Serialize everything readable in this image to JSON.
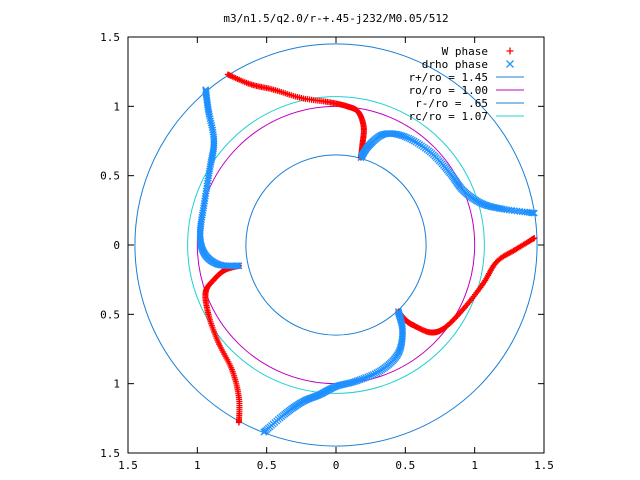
{
  "chart_data": {
    "type": "scatter",
    "title": "m3/n1.5/q2.0/r-+.45-j232/M0.05/512",
    "xlabel": "",
    "ylabel": "",
    "xlim": [
      -1.5,
      1.5
    ],
    "ylim": [
      -1.5,
      1.5
    ],
    "x_tick_values": [
      -1.5,
      -1,
      -0.5,
      0,
      0.5,
      1,
      1.5
    ],
    "x_tick_labels": [
      "1.5",
      "1",
      "0.5",
      "0",
      "0.5",
      "1",
      "1.5"
    ],
    "y_tick_values": [
      1.5,
      1,
      0.5,
      0,
      -0.5,
      -1,
      -1.5
    ],
    "y_tick_labels": [
      "1.5",
      "1",
      "0.5",
      "0",
      "0.5",
      "1",
      "1.5"
    ],
    "grid": false,
    "legend_position": "top-right",
    "series": [
      {
        "name": "W phase",
        "kind": "points",
        "marker": "plus",
        "color": "#ff0000",
        "arms": [
          [
            [
              -0.78,
              1.23
            ],
            [
              -0.62,
              1.16
            ],
            [
              -0.45,
              1.12
            ],
            [
              -0.25,
              1.06
            ],
            [
              -0.05,
              1.03
            ],
            [
              0.08,
              1.0
            ],
            [
              0.16,
              0.96
            ],
            [
              0.2,
              0.85
            ],
            [
              0.19,
              0.72
            ],
            [
              0.18,
              0.63
            ]
          ],
          [
            [
              1.43,
              0.05
            ],
            [
              1.3,
              -0.03
            ],
            [
              1.16,
              -0.12
            ],
            [
              1.06,
              -0.28
            ],
            [
              0.92,
              -0.46
            ],
            [
              0.78,
              -0.6
            ],
            [
              0.68,
              -0.63
            ],
            [
              0.56,
              -0.58
            ],
            [
              0.5,
              -0.54
            ],
            [
              0.45,
              -0.48
            ]
          ],
          [
            [
              -0.7,
              -1.28
            ],
            [
              -0.7,
              -1.1
            ],
            [
              -0.75,
              -0.9
            ],
            [
              -0.85,
              -0.7
            ],
            [
              -0.92,
              -0.5
            ],
            [
              -0.94,
              -0.34
            ],
            [
              -0.88,
              -0.25
            ],
            [
              -0.8,
              -0.18
            ],
            [
              -0.7,
              -0.15
            ]
          ]
        ]
      },
      {
        "name": "drho phase",
        "kind": "points",
        "marker": "cross",
        "color": "#1e90ff",
        "arms": [
          [
            [
              0.18,
              0.63
            ],
            [
              0.24,
              0.72
            ],
            [
              0.35,
              0.8
            ],
            [
              0.5,
              0.78
            ],
            [
              0.68,
              0.67
            ],
            [
              0.82,
              0.52
            ],
            [
              0.92,
              0.39
            ],
            [
              1.05,
              0.3
            ],
            [
              1.2,
              0.26
            ],
            [
              1.43,
              0.23
            ]
          ],
          [
            [
              0.45,
              -0.48
            ],
            [
              0.48,
              -0.62
            ],
            [
              0.45,
              -0.78
            ],
            [
              0.33,
              -0.9
            ],
            [
              0.15,
              -0.98
            ],
            [
              0.0,
              -1.02
            ],
            [
              -0.12,
              -1.08
            ],
            [
              -0.24,
              -1.13
            ],
            [
              -0.37,
              -1.22
            ],
            [
              -0.52,
              -1.35
            ]
          ],
          [
            [
              -0.7,
              -0.15
            ],
            [
              -0.85,
              -0.14
            ],
            [
              -0.95,
              -0.06
            ],
            [
              -0.98,
              0.08
            ],
            [
              -0.95,
              0.3
            ],
            [
              -0.91,
              0.55
            ],
            [
              -0.88,
              0.75
            ],
            [
              -0.92,
              0.97
            ],
            [
              -0.94,
              1.12
            ]
          ]
        ]
      },
      {
        "name": "r+/ro = 1.45",
        "kind": "circle",
        "radius": 1.45,
        "color": "#1a7fd6"
      },
      {
        "name": "ro/ro = 1.00",
        "kind": "circle",
        "radius": 1.0,
        "color": "#c000c0"
      },
      {
        "name": "r-/ro = .65",
        "kind": "circle",
        "radius": 0.65,
        "color": "#1a7fd6"
      },
      {
        "name": "rc/ro = 1.07",
        "kind": "circle",
        "radius": 1.07,
        "color": "#20d0d0"
      }
    ]
  }
}
